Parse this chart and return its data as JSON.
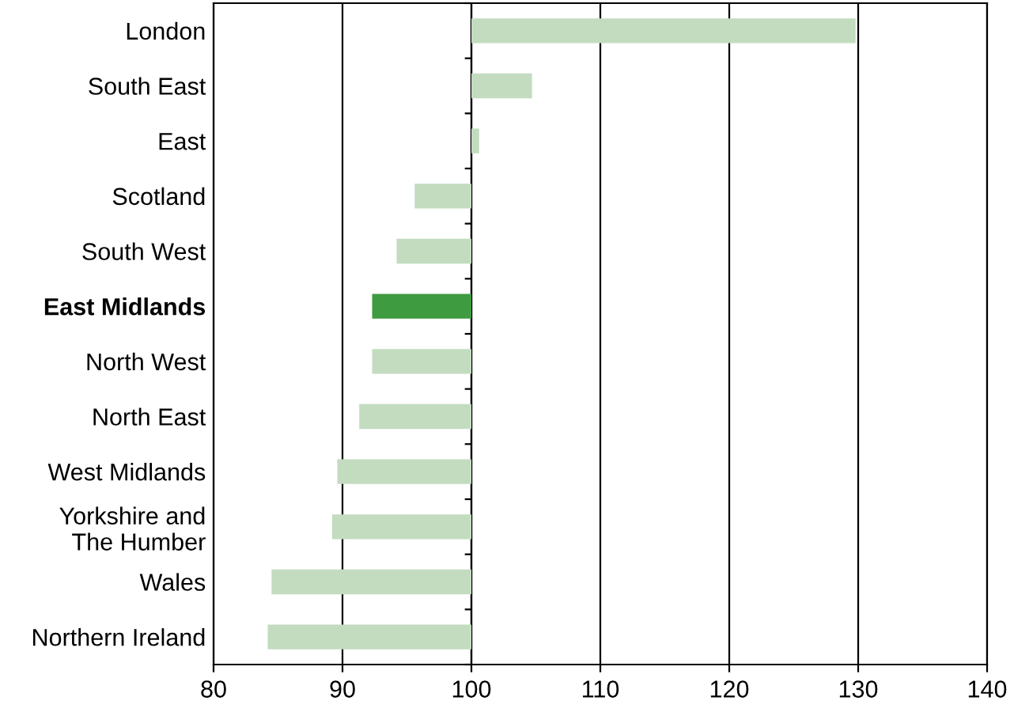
{
  "chart_data": {
    "type": "bar",
    "orientation": "horizontal",
    "categories": [
      "London",
      "South East",
      "East",
      "Scotland",
      "South West",
      "East Midlands",
      "North West",
      "North East",
      "West Midlands",
      "Yorkshire and\nThe Humber",
      "Wales",
      "Northern Ireland"
    ],
    "base": [
      100,
      100,
      100,
      100,
      100,
      100,
      100,
      100,
      100,
      100,
      100,
      100
    ],
    "values": [
      29.8,
      4.7,
      0.6,
      -4.4,
      -5.8,
      -7.7,
      -7.7,
      -8.7,
      -10.4,
      -10.8,
      -15.5,
      -15.8
    ],
    "colors": [
      "#c3dcc0",
      "#c3dcc0",
      "#c3dcc0",
      "#c3dcc0",
      "#c3dcc0",
      "#3f9b3f",
      "#c3dcc0",
      "#c3dcc0",
      "#c3dcc0",
      "#c3dcc0",
      "#c3dcc0",
      "#c3dcc0"
    ],
    "xlim": [
      80,
      140
    ],
    "xticks": [
      80,
      90,
      100,
      110,
      120,
      130,
      140
    ],
    "grid": "x",
    "legend": false
  }
}
